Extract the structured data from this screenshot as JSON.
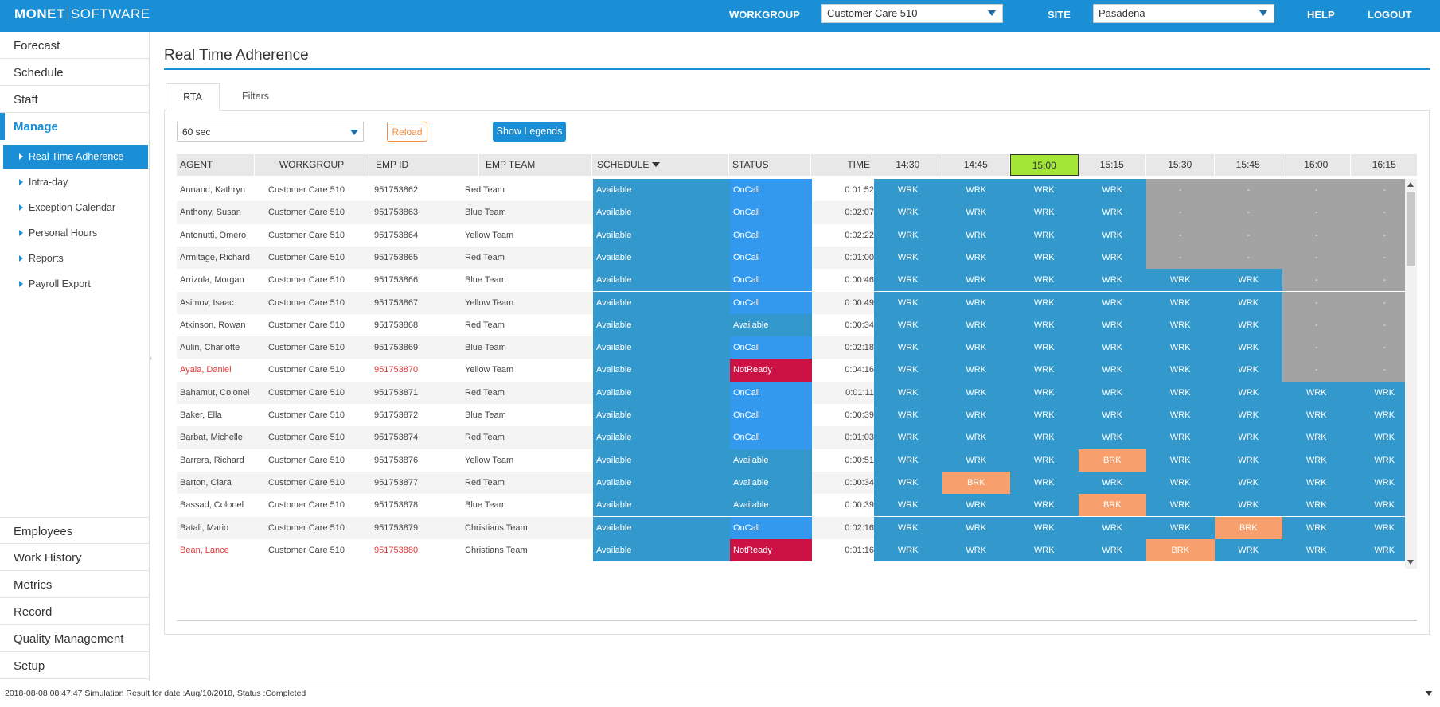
{
  "app": {
    "logo_bold": "MONET",
    "logo_light": "SOFTWARE"
  },
  "header": {
    "workgroup_label": "WORKGROUP",
    "workgroup_value": "Customer Care 510",
    "site_label": "SITE",
    "site_value": "Pasadena",
    "help": "HELP",
    "logout": "LOGOUT"
  },
  "sidebar": {
    "top_items": [
      "Forecast",
      "Schedule",
      "Staff",
      "Manage"
    ],
    "active_item": "Manage",
    "sub_items": [
      "Real Time Adherence",
      "Intra-day",
      "Exception Calendar",
      "Personal Hours",
      "Reports",
      "Payroll Export"
    ],
    "active_sub": "Real Time Adherence",
    "bottom_items": [
      "Employees",
      "Work History",
      "Metrics",
      "Record",
      "Quality Management",
      "Setup"
    ]
  },
  "page": {
    "title": "Real Time Adherence",
    "tabs": [
      "RTA",
      "Filters"
    ],
    "active_tab": "RTA",
    "refresh_value": "60 sec",
    "reload_label": "Reload",
    "legend_label": "Show Legends"
  },
  "grid": {
    "columns": [
      "AGENT",
      "WORKGROUP",
      "EMP ID",
      "EMP TEAM",
      "SCHEDULE",
      "STATUS",
      "TIME"
    ],
    "intervals": [
      "14:30",
      "14:45",
      "15:00",
      "15:15",
      "15:30",
      "15:45",
      "16:00",
      "16:15"
    ],
    "current_interval": "15:00",
    "sorted_column": "SCHEDULE",
    "rows": [
      {
        "agent": "Annand, Kathryn",
        "workgroup": "Customer Care 510",
        "emp_id": "951753862",
        "team": "Red Team",
        "schedule": "Available",
        "status": "OnCall",
        "time": "0:01:52",
        "cells": [
          "WRK",
          "WRK",
          "WRK",
          "WRK",
          "-",
          "-",
          "-",
          "-"
        ]
      },
      {
        "agent": "Anthony, Susan",
        "workgroup": "Customer Care 510",
        "emp_id": "951753863",
        "team": "Blue Team",
        "schedule": "Available",
        "status": "OnCall",
        "time": "0:02:07",
        "cells": [
          "WRK",
          "WRK",
          "WRK",
          "WRK",
          "-",
          "-",
          "-",
          "-"
        ]
      },
      {
        "agent": "Antonutti, Omero",
        "workgroup": "Customer Care 510",
        "emp_id": "951753864",
        "team": "Yellow Team",
        "schedule": "Available",
        "status": "OnCall",
        "time": "0:02:22",
        "cells": [
          "WRK",
          "WRK",
          "WRK",
          "WRK",
          "-",
          "-",
          "-",
          "-"
        ]
      },
      {
        "agent": "Armitage, Richard",
        "workgroup": "Customer Care 510",
        "emp_id": "951753865",
        "team": "Red Team",
        "schedule": "Available",
        "status": "OnCall",
        "time": "0:01:00",
        "cells": [
          "WRK",
          "WRK",
          "WRK",
          "WRK",
          "-",
          "-",
          "-",
          "-"
        ]
      },
      {
        "agent": "Arrizola, Morgan",
        "workgroup": "Customer Care 510",
        "emp_id": "951753866",
        "team": "Blue Team",
        "schedule": "Available",
        "status": "OnCall",
        "time": "0:00:46",
        "cells": [
          "WRK",
          "WRK",
          "WRK",
          "WRK",
          "WRK",
          "WRK",
          "-",
          "-"
        ]
      },
      {
        "agent": "Asimov, Isaac",
        "workgroup": "Customer Care 510",
        "emp_id": "951753867",
        "team": "Yellow Team",
        "schedule": "Available",
        "status": "OnCall",
        "time": "0:00:49",
        "cells": [
          "WRK",
          "WRK",
          "WRK",
          "WRK",
          "WRK",
          "WRK",
          "-",
          "-"
        ]
      },
      {
        "agent": "Atkinson, Rowan",
        "workgroup": "Customer Care 510",
        "emp_id": "951753868",
        "team": "Red Team",
        "schedule": "Available",
        "status": "Available",
        "time": "0:00:34",
        "cells": [
          "WRK",
          "WRK",
          "WRK",
          "WRK",
          "WRK",
          "WRK",
          "-",
          "-"
        ]
      },
      {
        "agent": "Aulin, Charlotte",
        "workgroup": "Customer Care 510",
        "emp_id": "951753869",
        "team": "Blue Team",
        "schedule": "Available",
        "status": "OnCall",
        "time": "0:02:18",
        "cells": [
          "WRK",
          "WRK",
          "WRK",
          "WRK",
          "WRK",
          "WRK",
          "-",
          "-"
        ]
      },
      {
        "agent": "Ayala, Daniel",
        "workgroup": "Customer Care 510",
        "emp_id": "951753870",
        "team": "Yellow Team",
        "schedule": "Available",
        "status": "NotReady",
        "time": "0:04:16",
        "cells": [
          "WRK",
          "WRK",
          "WRK",
          "WRK",
          "WRK",
          "WRK",
          "-",
          "-"
        ]
      },
      {
        "agent": "Bahamut, Colonel",
        "workgroup": "Customer Care 510",
        "emp_id": "951753871",
        "team": "Red Team",
        "schedule": "Available",
        "status": "OnCall",
        "time": "0:01:11",
        "cells": [
          "WRK",
          "WRK",
          "WRK",
          "WRK",
          "WRK",
          "WRK",
          "WRK",
          "WRK"
        ]
      },
      {
        "agent": "Baker, Ella",
        "workgroup": "Customer Care 510",
        "emp_id": "951753872",
        "team": "Blue Team",
        "schedule": "Available",
        "status": "OnCall",
        "time": "0:00:39",
        "cells": [
          "WRK",
          "WRK",
          "WRK",
          "WRK",
          "WRK",
          "WRK",
          "WRK",
          "WRK"
        ]
      },
      {
        "agent": "Barbat, Michelle",
        "workgroup": "Customer Care 510",
        "emp_id": "951753874",
        "team": "Red Team",
        "schedule": "Available",
        "status": "OnCall",
        "time": "0:01:03",
        "cells": [
          "WRK",
          "WRK",
          "WRK",
          "WRK",
          "WRK",
          "WRK",
          "WRK",
          "WRK"
        ]
      },
      {
        "agent": "Barrera, Richard",
        "workgroup": "Customer Care 510",
        "emp_id": "951753876",
        "team": "Yellow Team",
        "schedule": "Available",
        "status": "Available",
        "time": "0:00:51",
        "cells": [
          "WRK",
          "WRK",
          "WRK",
          "BRK",
          "WRK",
          "WRK",
          "WRK",
          "WRK"
        ]
      },
      {
        "agent": "Barton, Clara",
        "workgroup": "Customer Care 510",
        "emp_id": "951753877",
        "team": "Red Team",
        "schedule": "Available",
        "status": "Available",
        "time": "0:00:34",
        "cells": [
          "WRK",
          "BRK",
          "WRK",
          "WRK",
          "WRK",
          "WRK",
          "WRK",
          "WRK"
        ]
      },
      {
        "agent": "Bassad, Colonel",
        "workgroup": "Customer Care 510",
        "emp_id": "951753878",
        "team": "Blue Team",
        "schedule": "Available",
        "status": "Available",
        "time": "0:00:39",
        "cells": [
          "WRK",
          "WRK",
          "WRK",
          "BRK",
          "WRK",
          "WRK",
          "WRK",
          "WRK"
        ]
      },
      {
        "agent": "Batali, Mario",
        "workgroup": "Customer Care 510",
        "emp_id": "951753879",
        "team": "Christians Team",
        "schedule": "Available",
        "status": "OnCall",
        "time": "0:02:16",
        "cells": [
          "WRK",
          "WRK",
          "WRK",
          "WRK",
          "WRK",
          "BRK",
          "WRK",
          "WRK"
        ]
      },
      {
        "agent": "Bean, Lance",
        "workgroup": "Customer Care 510",
        "emp_id": "951753880",
        "team": "Christians Team",
        "schedule": "Available",
        "status": "NotReady",
        "time": "0:01:16",
        "cells": [
          "WRK",
          "WRK",
          "WRK",
          "WRK",
          "BRK",
          "WRK",
          "WRK",
          "WRK"
        ]
      }
    ]
  },
  "statusbar": {
    "message": "2018-08-08 08:47:47 Simulation Result for date :Aug/10/2018, Status :Completed"
  },
  "colors": {
    "brand": "#1a8fd6",
    "work": "#3399cc",
    "oncall": "#3399ee",
    "notready": "#cc1144",
    "break": "#f7a06d",
    "unscheduled": "#a3a3a3",
    "current_interval": "#a4e637"
  }
}
